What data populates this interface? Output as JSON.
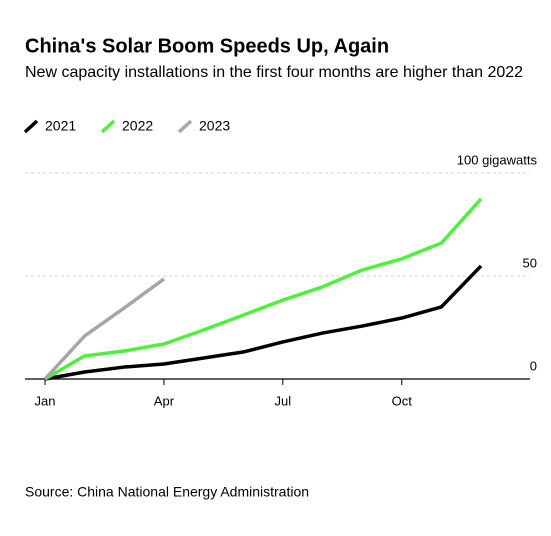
{
  "chart_data": {
    "type": "line",
    "title": "China's Solar Boom Speeds Up, Again",
    "subtitle": "New capacity installations in the first four months are higher than 2022",
    "source": "Source: China National Energy Administration",
    "categories": [
      "Jan",
      null,
      null,
      "Apr",
      null,
      null,
      "Jul",
      null,
      null,
      "Oct",
      null,
      null
    ],
    "series": [
      {
        "name": "2021",
        "color": "#000000",
        "values": [
          0,
          3.4,
          5.8,
          7.3,
          10.2,
          13.1,
          18,
          22.3,
          25.7,
          29.6,
          35,
          54.9
        ]
      },
      {
        "name": "2022",
        "color": "#4ff03c",
        "values": [
          0,
          11.2,
          13.6,
          17,
          23.8,
          31,
          38.3,
          44.7,
          52.9,
          58.3,
          66,
          87.4
        ]
      },
      {
        "name": "2023",
        "color": "#a6a6a6",
        "values": [
          0,
          20.9,
          34.5,
          48.5,
          null,
          null,
          null,
          null,
          null,
          null,
          null,
          null
        ]
      }
    ],
    "ylim": [
      0,
      100
    ],
    "yticks": [
      0,
      50,
      {
        "value": 100,
        "label": "100 gigawatts"
      }
    ],
    "grid": true,
    "legend": "top-left"
  }
}
